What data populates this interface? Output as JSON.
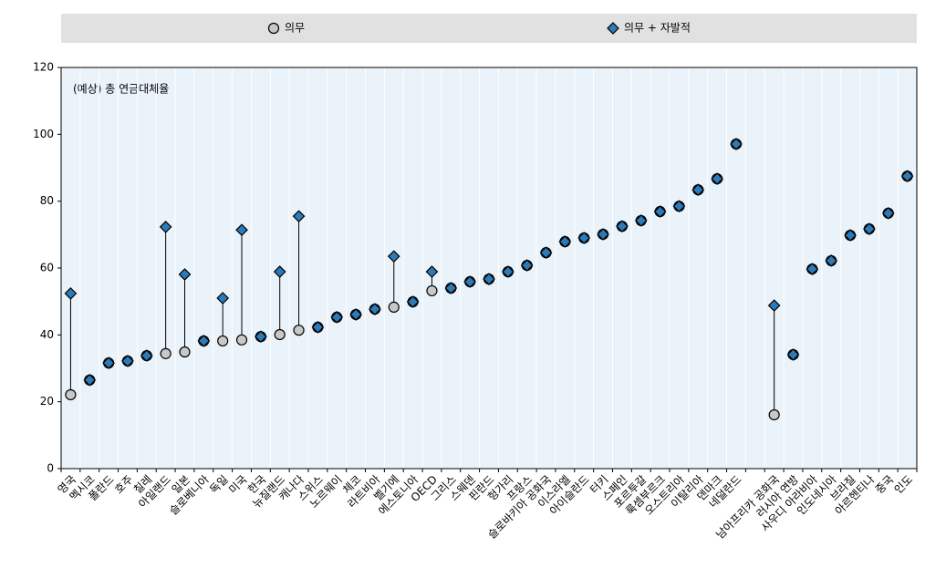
{
  "chart_data": {
    "type": "dot",
    "annotation": "(예상) 총 연금대체율",
    "categories": [
      "영국",
      "멕시코",
      "폴란드",
      "호주",
      "칠레",
      "아일랜드",
      "일본",
      "슬로베니아",
      "독일",
      "미국",
      "한국",
      "뉴질랜드",
      "캐나다",
      "스위스",
      "노르웨이",
      "체코",
      "라트비아",
      "벨기에",
      "에스토니아",
      "OECD",
      "그리스",
      "스웨덴",
      "핀란드",
      "헝가리",
      "프랑스",
      "슬로바키아 공화국",
      "이스라엘",
      "아이슬란드",
      "터키",
      "스페인",
      "포르투갈",
      "룩셈부르크",
      "오스트리아",
      "이탈리아",
      "덴마크",
      "네덜란드",
      null,
      "남아프리카 공화국",
      "러시아 연방",
      "사우디 아라비아",
      "인도네시아",
      "브라질",
      "아르헨티나",
      "중국",
      "인도"
    ],
    "series": [
      {
        "name": "의무",
        "color": "#c8c8c8",
        "marker": "circle",
        "values": [
          22.1,
          26.5,
          31.6,
          32.2,
          33.8,
          34.4,
          34.9,
          38.2,
          38.2,
          38.5,
          39.5,
          40.1,
          41.4,
          42.3,
          45.3,
          46.1,
          47.7,
          48.3,
          49.9,
          53.2,
          54.0,
          55.9,
          56.7,
          58.9,
          60.8,
          64.6,
          67.9,
          69.0,
          70.1,
          72.5,
          74.2,
          76.9,
          78.5,
          83.4,
          86.7,
          97.1,
          null,
          16.1,
          34.1,
          59.7,
          62.2,
          69.8,
          71.7,
          76.4,
          87.5
        ]
      },
      {
        "name": "의무 + 자발적",
        "color": "#2d7ab8",
        "marker": "diamond",
        "values": [
          52.4,
          26.5,
          31.6,
          32.2,
          33.8,
          72.3,
          58.1,
          38.2,
          51.0,
          71.4,
          39.5,
          58.9,
          75.5,
          42.3,
          45.3,
          46.1,
          47.7,
          63.5,
          49.9,
          58.9,
          54.0,
          55.9,
          56.7,
          58.9,
          60.8,
          64.6,
          67.9,
          69.0,
          70.1,
          72.5,
          74.2,
          76.9,
          78.5,
          83.4,
          86.7,
          97.1,
          null,
          48.8,
          34.1,
          59.7,
          62.2,
          69.8,
          71.7,
          76.4,
          87.5
        ]
      }
    ],
    "ylim": [
      0,
      120
    ],
    "yticks": [
      0,
      20,
      40,
      60,
      80,
      100,
      120
    ],
    "grid": true
  }
}
